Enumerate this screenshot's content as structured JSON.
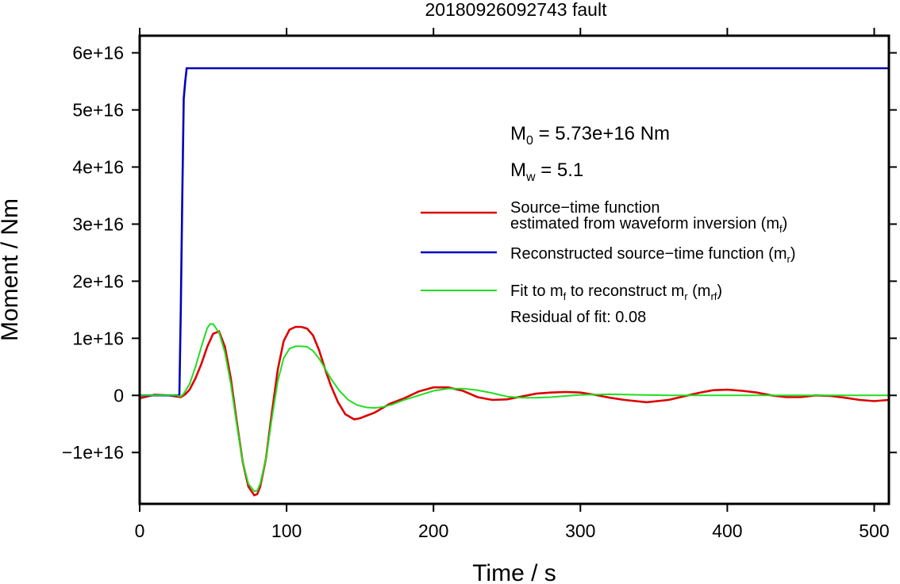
{
  "chart_data": {
    "type": "line",
    "title": "20180926092743 fault",
    "xlabel": "Time / s",
    "ylabel": "Moment / Nm",
    "xlim": [
      0,
      510
    ],
    "ylim": [
      -1.9e+16,
      6.3e+16
    ],
    "grid": false,
    "legend_position": "right-center",
    "x_ticks": [
      0,
      100,
      200,
      300,
      400,
      500
    ],
    "x_tick_labels": [
      "0",
      "100",
      "200",
      "300",
      "400",
      "500"
    ],
    "y_ticks": [
      -1e+16,
      0,
      1e+16,
      2e+16,
      3e+16,
      4e+16,
      5e+16,
      6e+16
    ],
    "y_tick_labels": [
      "−1e+16",
      "0",
      "1e+16",
      "2e+16",
      "3e+16",
      "4e+16",
      "5e+16",
      "6e+16"
    ],
    "annotations": {
      "m0": {
        "main": "M",
        "sub": "0",
        "rest": " = 5.73e+16 Nm"
      },
      "mw": {
        "main": "M",
        "sub": "w",
        "rest": " = 5.1"
      },
      "residual": "Residual of fit: 0.08"
    },
    "series": [
      {
        "name": "Source−time function estimated from waveform inversion (m_f)",
        "legend": {
          "line1": "Source−time function",
          "line2_a": "estimated from waveform inversion (m",
          "line2_sub": "f",
          "line2_b": ")"
        },
        "color": "#dd0000",
        "x": [
          0,
          10,
          20,
          25,
          28,
          31,
          34,
          38,
          42,
          46,
          50,
          54,
          58,
          62,
          66,
          70,
          74,
          78,
          80,
          82,
          86,
          90,
          94,
          98,
          102,
          106,
          110,
          114,
          118,
          122,
          126,
          130,
          135,
          140,
          146,
          150,
          155,
          160,
          170,
          180,
          190,
          200,
          210,
          220,
          230,
          240,
          250,
          260,
          270,
          280,
          290,
          300,
          310,
          320,
          330,
          345,
          360,
          370,
          380,
          390,
          400,
          410,
          420,
          430,
          440,
          450,
          460,
          470,
          480,
          490,
          500,
          510
        ],
        "y": [
          -500000000000000.0,
          100000000000000.0,
          0.0,
          -200000000000000.0,
          -300000000000000.0,
          200000000000000.0,
          1000000000000000.0,
          3000000000000000.0,
          5500000000000000.0,
          8500000000000000.0,
          1.08e+16,
          1.12e+16,
          8500000000000000.0,
          3000000000000000.0,
          -4500000000000000.0,
          -1.15e+16,
          -1.6e+16,
          -1.75e+16,
          -1.73e+16,
          -1.6e+16,
          -1.1e+16,
          -3000000000000000.0,
          4500000000000000.0,
          9500000000000000.0,
          1.15e+16,
          1.2e+16,
          1.2e+16,
          1.17e+16,
          1.05e+16,
          8000000000000000.0,
          4800000000000000.0,
          1800000000000000.0,
          -1200000000000000.0,
          -3300000000000000.0,
          -4200000000000000.0,
          -4000000000000000.0,
          -3500000000000000.0,
          -3000000000000000.0,
          -1500000000000000.0,
          -500000000000000.0,
          700000000000000.0,
          1400000000000000.0,
          1400000000000000.0,
          800000000000000.0,
          -300000000000000.0,
          -800000000000000.0,
          -700000000000000.0,
          -200000000000000.0,
          300000000000000.0,
          500000000000000.0,
          600000000000000.0,
          500000000000000.0,
          100000000000000.0,
          -400000000000000.0,
          -800000000000000.0,
          -1200000000000000.0,
          -800000000000000.0,
          -200000000000000.0,
          400000000000000.0,
          900000000000000.0,
          1000000000000000.0,
          800000000000000.0,
          500000000000000.0,
          0.0,
          -300000000000000.0,
          -300000000000000.0,
          0.0,
          -100000000000000.0,
          -400000000000000.0,
          -800000000000000.0,
          -1000000000000000.0,
          -800000000000000.0
        ]
      },
      {
        "name": "Reconstructed source−time function (m_r)",
        "legend": {
          "line1_a": "Reconstructed source−time function (m",
          "line1_sub": "r",
          "line1_b": ")"
        },
        "color": "#0000bb",
        "x": [
          0,
          27,
          28,
          29,
          30,
          31,
          32,
          33,
          40,
          100,
          200,
          300,
          400,
          510
        ],
        "y": [
          0,
          0,
          1.5e+16,
          3.5e+16,
          5.2e+16,
          5.5e+16,
          5.73e+16,
          5.73e+16,
          5.73e+16,
          5.73e+16,
          5.73e+16,
          5.73e+16,
          5.73e+16,
          5.73e+16
        ]
      },
      {
        "name": "Fit to m_f to reconstruct m_r (m_rf)",
        "legend": {
          "t1": "Fit to m",
          "s1": "f",
          "t2": " to reconstruct m",
          "s2": "r",
          "t3": " (m",
          "s3": "rf",
          "t4": ")"
        },
        "color": "#22dd22",
        "x": [
          0,
          10,
          20,
          25,
          28,
          30,
          34,
          38,
          42,
          46,
          48,
          50,
          54,
          58,
          62,
          66,
          70,
          74,
          78,
          80,
          82,
          86,
          90,
          94,
          98,
          102,
          106,
          110,
          114,
          118,
          122,
          126,
          130,
          136,
          142,
          148,
          154,
          160,
          166,
          172,
          180,
          190,
          200,
          210,
          220,
          230,
          240,
          250,
          260,
          270,
          280,
          290,
          300,
          320,
          340,
          360,
          400,
          450,
          510
        ],
        "y": [
          0,
          0,
          0,
          0,
          -200000000000000.0,
          300000000000000.0,
          2000000000000000.0,
          5000000000000000.0,
          8500000000000000.0,
          1.18e+16,
          1.25e+16,
          1.25e+16,
          1.1e+16,
          7500000000000000.0,
          2000000000000000.0,
          -5000000000000000.0,
          -1.15e+16,
          -1.55e+16,
          -1.68e+16,
          -1.67e+16,
          -1.55e+16,
          -1.1e+16,
          -4000000000000000.0,
          2500000000000000.0,
          6500000000000000.0,
          8200000000000000.0,
          8600000000000000.0,
          8600000000000000.0,
          8500000000000000.0,
          7800000000000000.0,
          6500000000000000.0,
          4800000000000000.0,
          3000000000000000.0,
          800000000000000.0,
          -800000000000000.0,
          -1700000000000000.0,
          -2100000000000000.0,
          -2200000000000000.0,
          -2000000000000000.0,
          -1600000000000000.0,
          -800000000000000.0,
          0.0,
          800000000000000.0,
          1200000000000000.0,
          1200000000000000.0,
          900000000000000.0,
          400000000000000.0,
          -200000000000000.0,
          -400000000000000.0,
          -400000000000000.0,
          -300000000000000.0,
          -100000000000000.0,
          100000000000000.0,
          200000000000000.0,
          100000000000000.0,
          0.0,
          0.0,
          0.0,
          0.0
        ]
      }
    ]
  }
}
